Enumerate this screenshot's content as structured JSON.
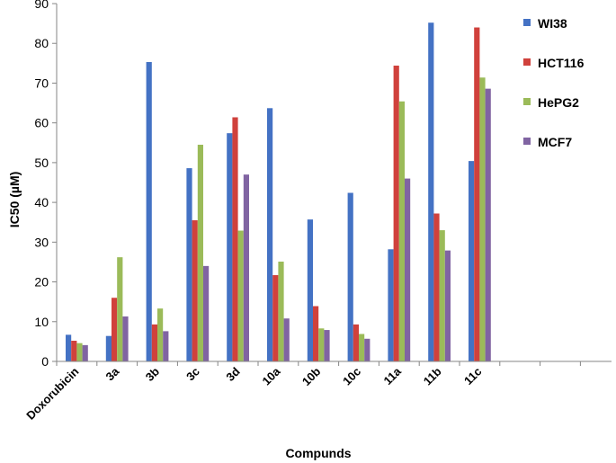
{
  "chart_data": {
    "type": "bar",
    "title": "",
    "xlabel": "Compunds",
    "ylabel": "IC50 (µM)",
    "ylim": [
      0,
      90
    ],
    "yticks": [
      0,
      10,
      20,
      30,
      40,
      50,
      60,
      70,
      80,
      90
    ],
    "grid": false,
    "legend_position": "right",
    "categories": [
      "Doxorubicin",
      "3a",
      "3b",
      "3c",
      "3d",
      "10a",
      "10b",
      "10c",
      "11a",
      "11b",
      "11c"
    ],
    "series": [
      {
        "name": "WI38",
        "color": "#4472c4",
        "values": [
          6.7,
          6.4,
          75.3,
          48.6,
          57.4,
          63.7,
          35.7,
          42.4,
          28.2,
          85.2,
          50.4
        ]
      },
      {
        "name": "HCT116",
        "color": "#d0413c",
        "values": [
          5.2,
          16.0,
          9.3,
          35.5,
          61.4,
          21.7,
          13.9,
          9.3,
          74.4,
          37.2,
          84.0
        ]
      },
      {
        "name": "HePG2",
        "color": "#9bbb59",
        "values": [
          4.6,
          26.2,
          13.3,
          54.5,
          32.9,
          25.1,
          8.3,
          6.9,
          65.4,
          33.0,
          71.4
        ]
      },
      {
        "name": "MCF7",
        "color": "#8064a2",
        "values": [
          4.1,
          11.3,
          7.6,
          24.0,
          47.0,
          10.8,
          7.9,
          5.7,
          46.0,
          27.9,
          68.6
        ]
      }
    ]
  }
}
